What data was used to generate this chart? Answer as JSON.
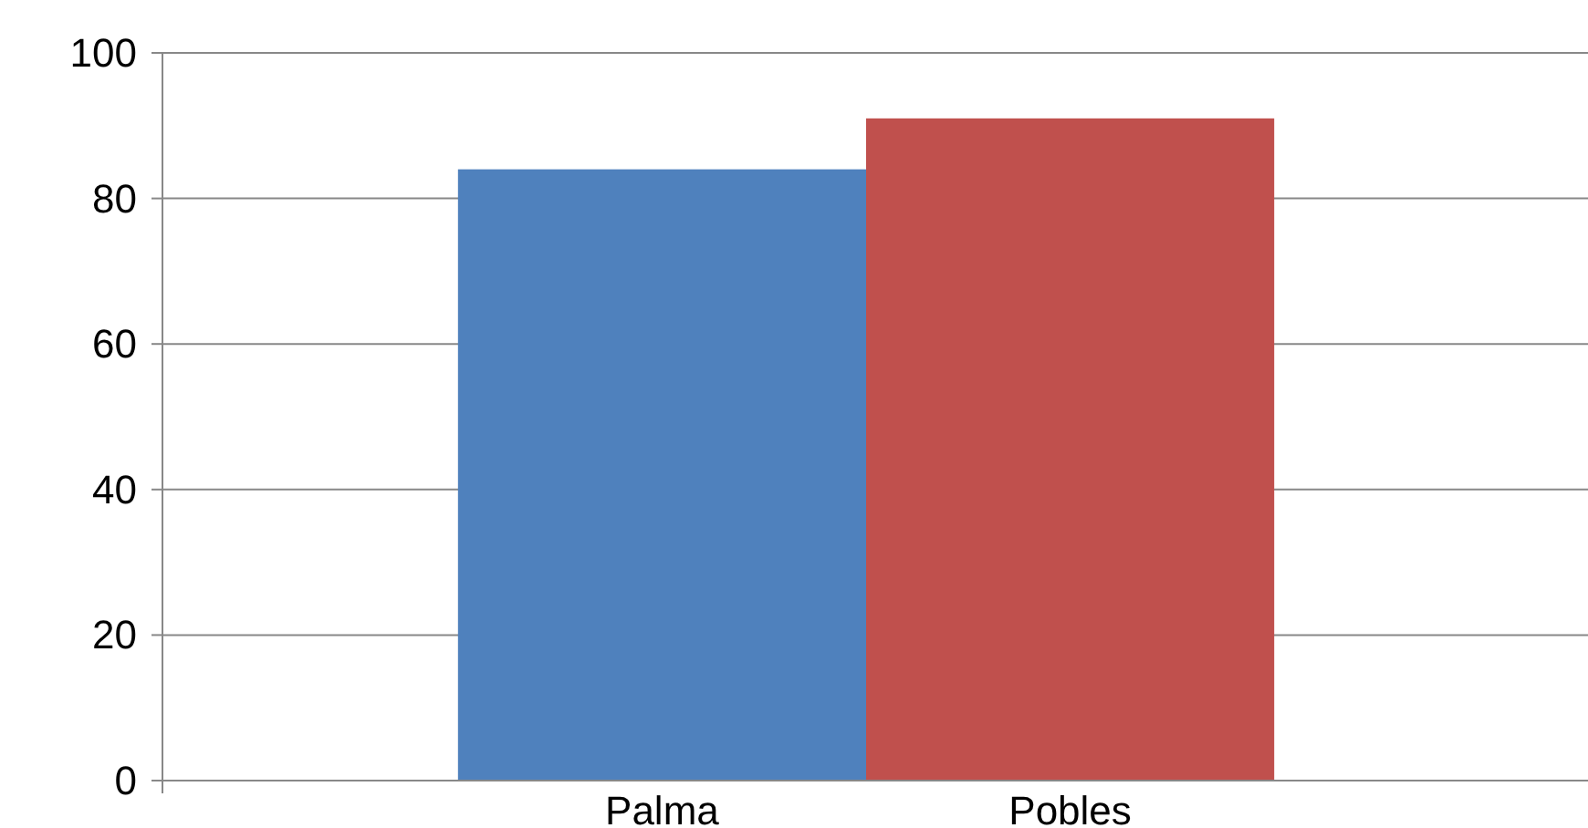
{
  "chart_data": {
    "type": "bar",
    "categories": [
      "Palma",
      "Pobles"
    ],
    "values": [
      84,
      91
    ],
    "colors": [
      "#4f81bd",
      "#c0504d"
    ],
    "ylim": [
      0,
      100
    ],
    "yticks": [
      0,
      20,
      40,
      60,
      80,
      100
    ],
    "grid": "y"
  }
}
